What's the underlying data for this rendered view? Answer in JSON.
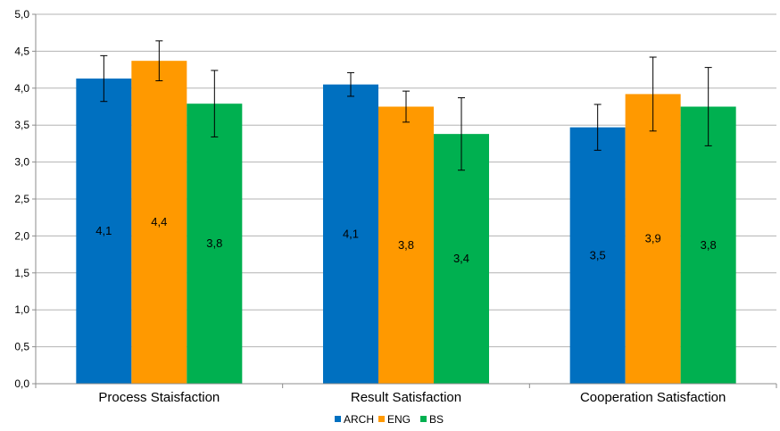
{
  "chart_data": {
    "type": "bar",
    "categories": [
      "Process Staisfaction",
      "Result Satisfaction",
      "Cooperation Satisfaction"
    ],
    "series": [
      {
        "name": "ARCH",
        "color": "#0070C0",
        "values": [
          4.13,
          4.05,
          3.47
        ],
        "labels": [
          "4,1",
          "4,1",
          "3,5"
        ],
        "error": [
          0.31,
          0.16,
          0.31
        ]
      },
      {
        "name": "ENG",
        "color": "#FF9900",
        "values": [
          4.37,
          3.75,
          3.92
        ],
        "labels": [
          "4,4",
          "3,8",
          "3,9"
        ],
        "error": [
          0.27,
          0.21,
          0.5
        ]
      },
      {
        "name": "BS",
        "color": "#00B050",
        "values": [
          3.79,
          3.38,
          3.75
        ],
        "labels": [
          "3,8",
          "3,4",
          "3,8"
        ],
        "error": [
          0.45,
          0.49,
          0.53
        ]
      }
    ],
    "ylim": [
      0,
      5
    ],
    "yticks": [
      "0,0",
      "0,5",
      "1,0",
      "1,5",
      "2,0",
      "2,5",
      "3,0",
      "3,5",
      "4,0",
      "4,5",
      "5,0"
    ],
    "grid": true,
    "legend": "bottom"
  }
}
